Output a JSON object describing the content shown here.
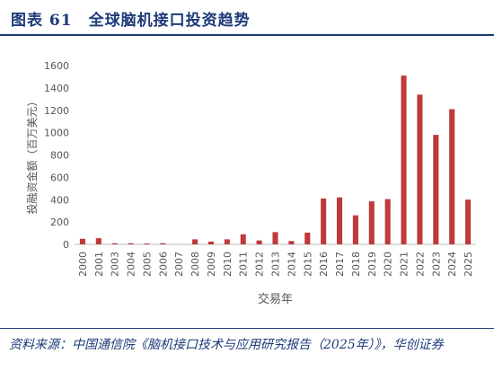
{
  "header": {
    "title": "图表 61　全球脑机接口投资趋势"
  },
  "source": {
    "text": "资料来源：中国通信院《脑机接口技术与应用研究报告（2025年）》，华创证券"
  },
  "colors": {
    "bar": "#c0393b",
    "accent": "#1e3a78",
    "axis": "#bbbbbb"
  },
  "chart_data": {
    "type": "bar",
    "xlabel": "交易年",
    "ylabel": "投融资金额（百万美元）",
    "ylim": [
      0,
      1600
    ],
    "yticks": [
      0,
      200,
      400,
      600,
      800,
      1000,
      1200,
      1400,
      1600
    ],
    "grid": false,
    "categories": [
      "2000",
      "2001",
      "2003",
      "2004",
      "2005",
      "2006",
      "2007",
      "2008",
      "2009",
      "2010",
      "2011",
      "2012",
      "2013",
      "2014",
      "2015",
      "2016",
      "2017",
      "2018",
      "2019",
      "2020",
      "2021",
      "2022",
      "2023",
      "2024",
      "2025"
    ],
    "values": [
      50,
      55,
      10,
      10,
      8,
      10,
      0,
      45,
      25,
      45,
      90,
      35,
      110,
      30,
      105,
      410,
      420,
      260,
      385,
      405,
      1510,
      1340,
      980,
      1210,
      400
    ]
  }
}
